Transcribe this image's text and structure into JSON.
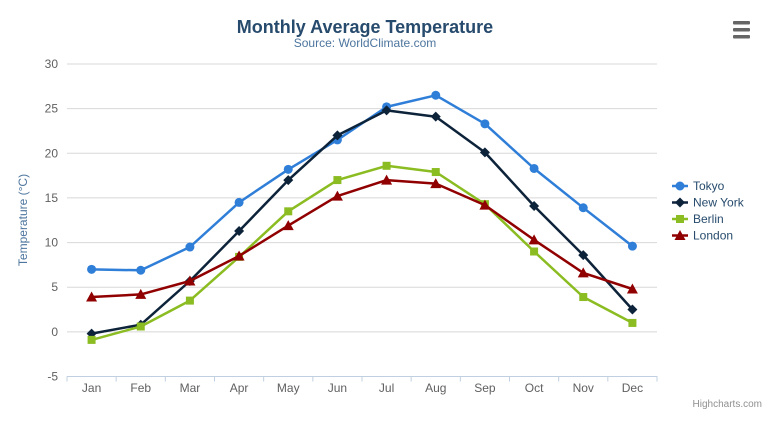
{
  "chart": {
    "title": "Monthly Average Temperature",
    "subtitle": "Source: WorldClimate.com"
  },
  "credits": {
    "label": "Highcharts.com"
  },
  "icons": {
    "export_menu": "hamburger-icon"
  },
  "chart_data": {
    "type": "line",
    "title": "Monthly Average Temperature",
    "subtitle": "Source: WorldClimate.com",
    "xlabel": "",
    "ylabel": "Temperature (°C)",
    "ylim": [
      -5,
      30
    ],
    "yticks": [
      -5,
      0,
      5,
      10,
      15,
      20,
      25,
      30
    ],
    "grid": true,
    "legend_position": "right",
    "categories": [
      "Jan",
      "Feb",
      "Mar",
      "Apr",
      "May",
      "Jun",
      "Jul",
      "Aug",
      "Sep",
      "Oct",
      "Nov",
      "Dec"
    ],
    "series": [
      {
        "name": "Tokyo",
        "color": "#2f7ed8",
        "marker": "circle",
        "values": [
          7.0,
          6.9,
          9.5,
          14.5,
          18.2,
          21.5,
          25.2,
          26.5,
          23.3,
          18.3,
          13.9,
          9.6
        ]
      },
      {
        "name": "New York",
        "color": "#0d233a",
        "marker": "diamond",
        "values": [
          -0.2,
          0.8,
          5.7,
          11.3,
          17.0,
          22.0,
          24.8,
          24.1,
          20.1,
          14.1,
          8.6,
          2.5
        ]
      },
      {
        "name": "Berlin",
        "color": "#8bbc21",
        "marker": "square",
        "values": [
          -0.9,
          0.6,
          3.5,
          8.4,
          13.5,
          17.0,
          18.6,
          17.9,
          14.3,
          9.0,
          3.9,
          1.0
        ]
      },
      {
        "name": "London",
        "color": "#910000",
        "marker": "triangle",
        "values": [
          3.9,
          4.2,
          5.7,
          8.5,
          11.9,
          15.2,
          17.0,
          16.6,
          14.2,
          10.3,
          6.6,
          4.8
        ]
      }
    ]
  }
}
